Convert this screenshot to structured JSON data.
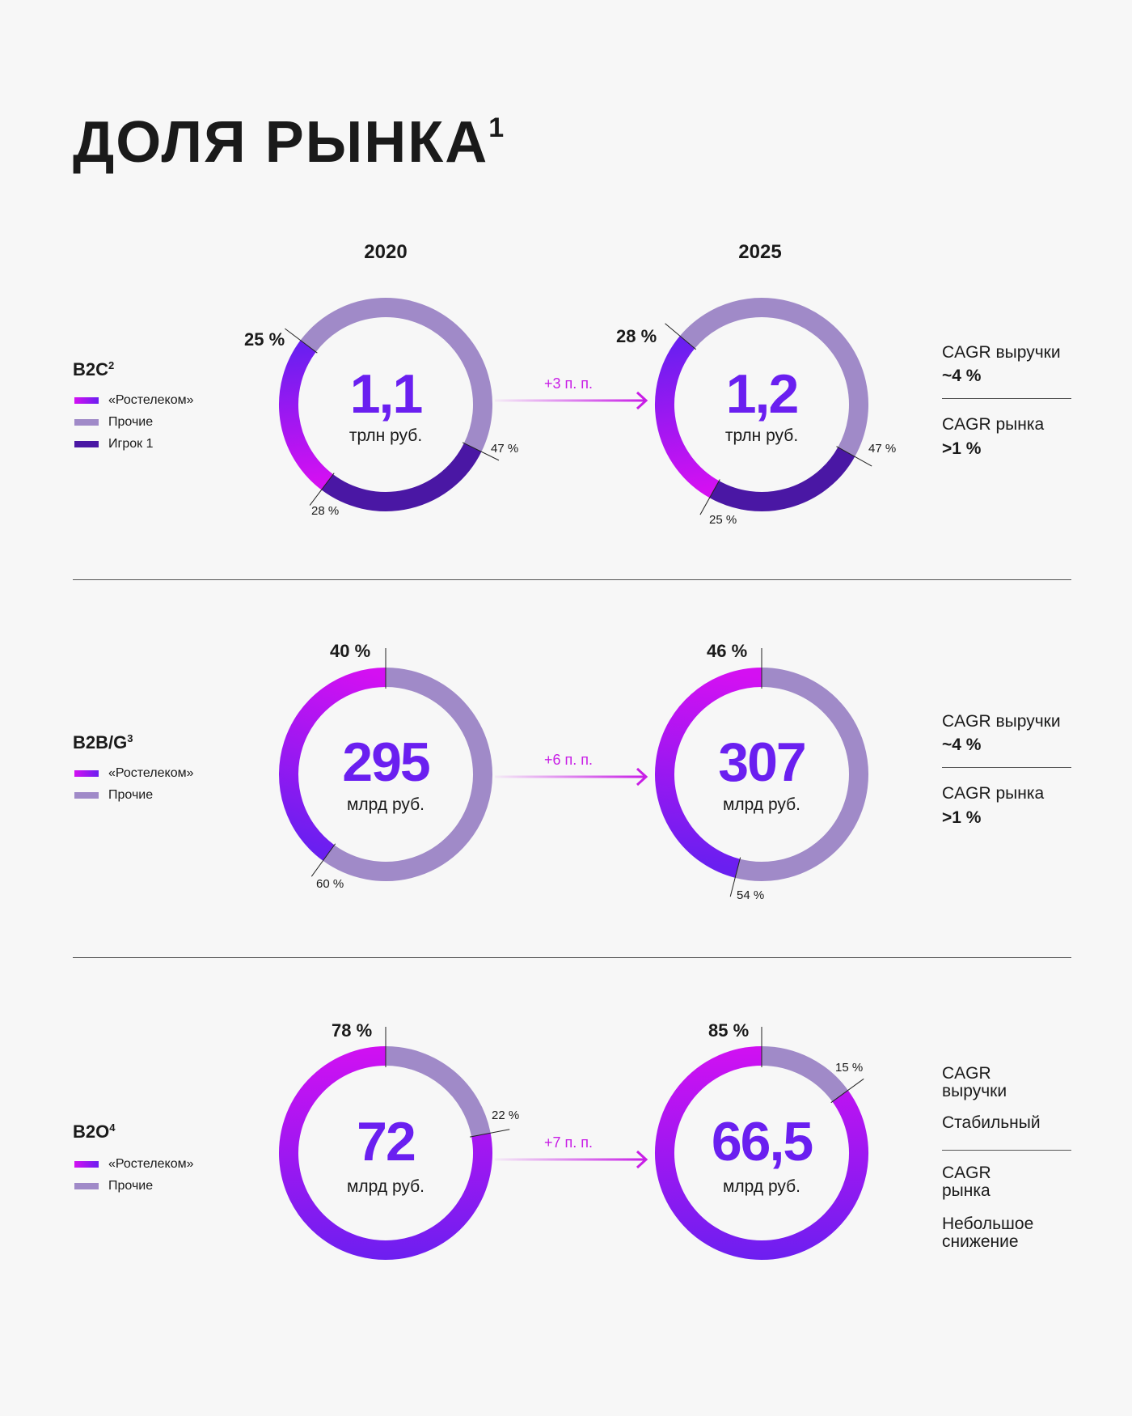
{
  "title": "ДОЛЯ РЫНКА",
  "title_footnote": "1",
  "years": [
    "2020",
    "2025"
  ],
  "legend_labels": {
    "rostelecom": "«Ростелеком»",
    "others": "Прочие",
    "player1": "Игрок 1"
  },
  "colors": {
    "rostelecom_start": "#d410f2",
    "rostelecom_end": "#6a1ff0",
    "others": "#a08ac8",
    "player1": "#4a17a4",
    "accent": "#6a1ff0",
    "delta": "#c81ee6"
  },
  "sections": [
    {
      "name": "B2C",
      "footnote": "2",
      "delta": "+3 п. п.",
      "right": [
        {
          "label": "CAGR выручки",
          "value": "~4 %"
        },
        {
          "label": "CAGR рынка",
          "value": ">1 %"
        }
      ]
    },
    {
      "name": "B2B/G",
      "footnote": "3",
      "delta": "+6 п. п.",
      "right": [
        {
          "label": "CAGR выручки",
          "value": "~4 %"
        },
        {
          "label": "CAGR рынка",
          "value": ">1 %"
        }
      ]
    },
    {
      "name": "B2O",
      "footnote": "4",
      "delta": "+7 п. п.",
      "right": [
        {
          "label": "CAGR",
          "label2": "выручки",
          "value": "Стабильный"
        },
        {
          "label": "CAGR",
          "label2": "рынка",
          "value": "Небольшое",
          "value2": "снижение"
        }
      ]
    }
  ],
  "chart_data": [
    {
      "type": "pie",
      "section": "B2C",
      "year": "2020",
      "total": "1,1",
      "unit": "трлн руб.",
      "segments": [
        {
          "name": "Прочие",
          "value": 47,
          "label": "47 %"
        },
        {
          "name": "Игрок 1",
          "value": 28,
          "label": "28 %"
        },
        {
          "name": "«Ростелеком»",
          "value": 25,
          "label": "25 %"
        }
      ]
    },
    {
      "type": "pie",
      "section": "B2C",
      "year": "2025",
      "total": "1,2",
      "unit": "трлн руб.",
      "segments": [
        {
          "name": "Прочие",
          "value": 47,
          "label": "47 %"
        },
        {
          "name": "Игрок 1",
          "value": 25,
          "label": "25 %"
        },
        {
          "name": "«Ростелеком»",
          "value": 28,
          "label": "28 %"
        }
      ]
    },
    {
      "type": "pie",
      "section": "B2B/G",
      "year": "2020",
      "total": "295",
      "unit": "млрд руб.",
      "segments": [
        {
          "name": "Прочие",
          "value": 60,
          "label": "60 %"
        },
        {
          "name": "«Ростелеком»",
          "value": 40,
          "label": "40 %"
        }
      ]
    },
    {
      "type": "pie",
      "section": "B2B/G",
      "year": "2025",
      "total": "307",
      "unit": "млрд руб.",
      "segments": [
        {
          "name": "Прочие",
          "value": 54,
          "label": "54 %"
        },
        {
          "name": "«Ростелеком»",
          "value": 46,
          "label": "46 %"
        }
      ]
    },
    {
      "type": "pie",
      "section": "B2O",
      "year": "2020",
      "total": "72",
      "unit": "млрд руб.",
      "segments": [
        {
          "name": "Прочие",
          "value": 22,
          "label": "22 %"
        },
        {
          "name": "«Ростелеком»",
          "value": 78,
          "label": "78 %"
        }
      ]
    },
    {
      "type": "pie",
      "section": "B2O",
      "year": "2025",
      "total": "66,5",
      "unit": "млрд руб.",
      "segments": [
        {
          "name": "Прочие",
          "value": 15,
          "label": "15 %"
        },
        {
          "name": "«Ростелеком»",
          "value": 85,
          "label": "85 %"
        }
      ]
    }
  ]
}
